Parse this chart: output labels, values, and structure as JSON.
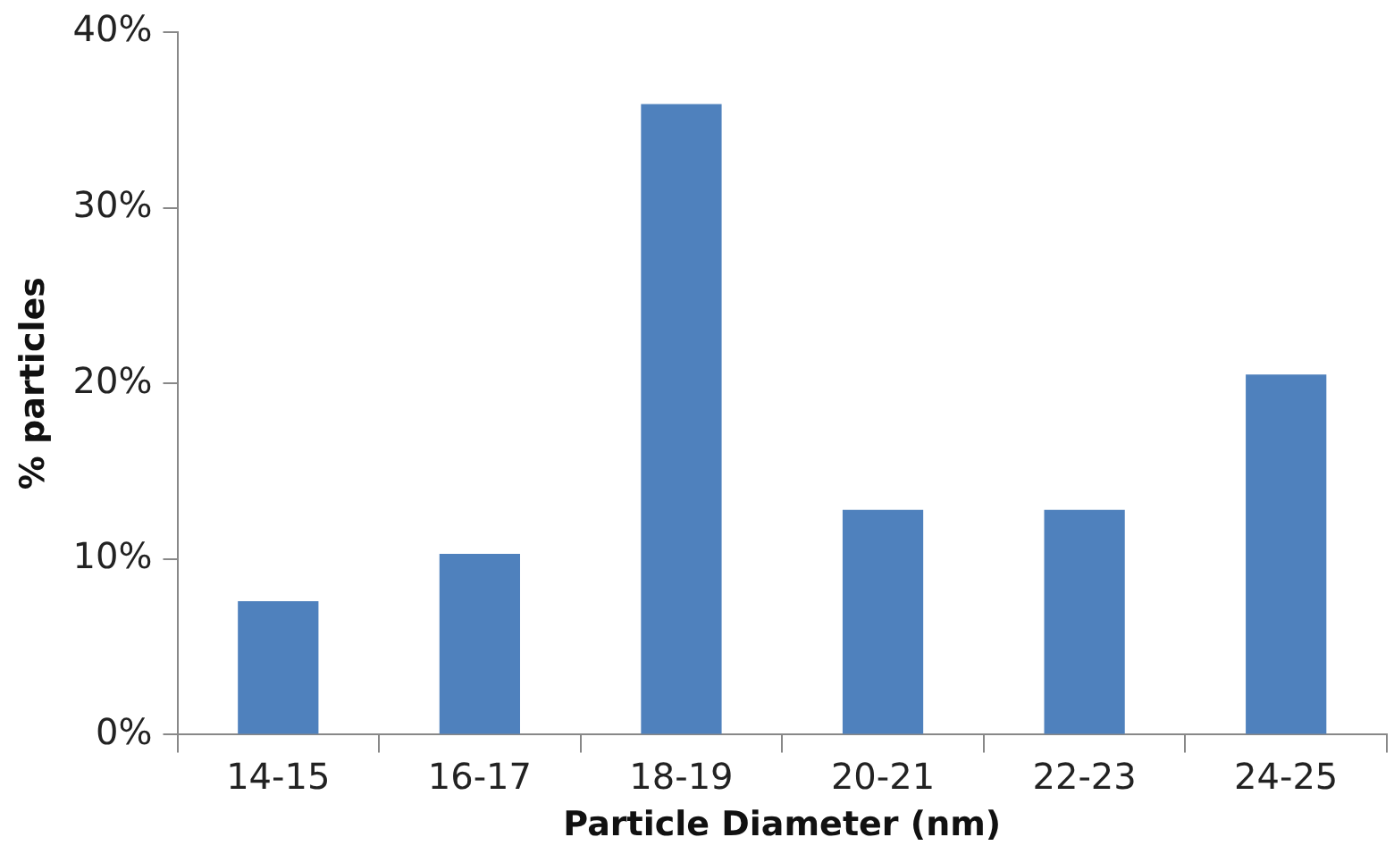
{
  "chart_data": {
    "type": "bar",
    "xlabel": "Particle Diameter (nm)",
    "ylabel": "% particles",
    "categories": [
      "14-15",
      "16-17",
      "18-19",
      "20-21",
      "22-23",
      "24-25"
    ],
    "values": [
      7.6,
      10.3,
      35.9,
      12.8,
      12.8,
      20.5
    ],
    "color": "#4f81bd",
    "ylim": [
      0,
      40
    ],
    "yticks": [
      {
        "value": 0,
        "label": "0%"
      },
      {
        "value": 10,
        "label": "10%"
      },
      {
        "value": 20,
        "label": "20%"
      },
      {
        "value": 30,
        "label": "30%"
      },
      {
        "value": 40,
        "label": "40%"
      }
    ],
    "grid": false,
    "legend": false
  }
}
